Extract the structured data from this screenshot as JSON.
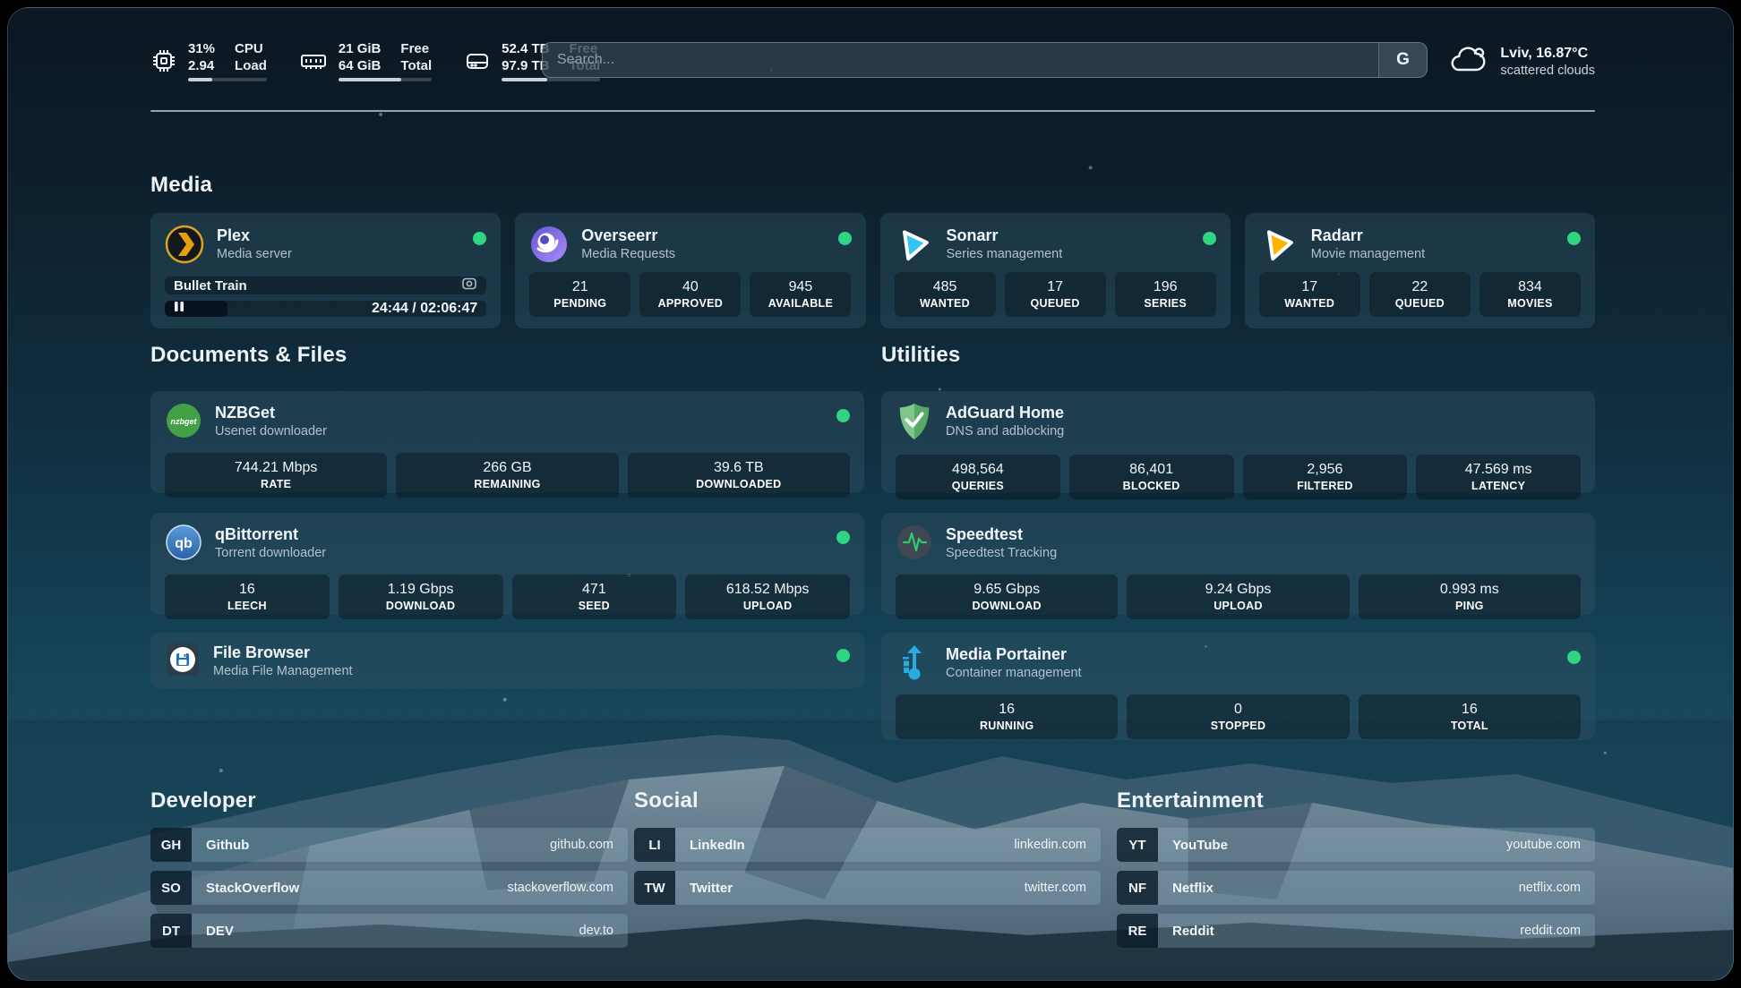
{
  "colors": {
    "status_online": "#2fd583",
    "accent_snow": "#a9bcc8",
    "card_bg": "rgba(47,82,97,0.44)"
  },
  "topbar": {
    "cpu": {
      "icon": "cpu-icon",
      "value_top": "31%",
      "value_bottom": "2.94",
      "label_top": "CPU",
      "label_bottom": "Load",
      "progress_pct": 31
    },
    "memory": {
      "icon": "ram-icon",
      "value_top": "21 GiB",
      "value_bottom": "64 GiB",
      "label_top": "Free",
      "label_bottom": "Total",
      "progress_pct": 67
    },
    "disk": {
      "icon": "disk-icon",
      "value_top": "52.4 TB",
      "value_bottom": "97.9 TB",
      "label_top": "Free",
      "label_bottom": "Total",
      "progress_pct": 46
    },
    "search_placeholder": "Search...",
    "search_button": "G",
    "weather": {
      "icon": "cloud-icon",
      "location_temp": "Lviv, 16.87°C",
      "condition": "scattered clouds"
    }
  },
  "sections": {
    "media": {
      "title": "Media",
      "plex": {
        "icon": "plex-icon",
        "name": "Plex",
        "subtitle": "Media server",
        "status": "online",
        "now_playing": "Bullet Train",
        "time_display": "24:44 / 02:06:47",
        "progress_pct": 19.5
      },
      "overseerr": {
        "icon": "overseerr-icon",
        "name": "Overseerr",
        "subtitle": "Media Requests",
        "status": "online",
        "stats": [
          {
            "value": "21",
            "label": "PENDING"
          },
          {
            "value": "40",
            "label": "APPROVED"
          },
          {
            "value": "945",
            "label": "AVAILABLE"
          }
        ]
      },
      "sonarr": {
        "icon": "sonarr-icon",
        "name": "Sonarr",
        "subtitle": "Series management",
        "status": "online",
        "stats": [
          {
            "value": "485",
            "label": "WANTED"
          },
          {
            "value": "17",
            "label": "QUEUED"
          },
          {
            "value": "196",
            "label": "SERIES"
          }
        ]
      },
      "radarr": {
        "icon": "radarr-icon",
        "name": "Radarr",
        "subtitle": "Movie management",
        "status": "online",
        "stats": [
          {
            "value": "17",
            "label": "WANTED"
          },
          {
            "value": "22",
            "label": "QUEUED"
          },
          {
            "value": "834",
            "label": "MOVIES"
          }
        ]
      }
    },
    "documents": {
      "title": "Documents & Files",
      "nzbget": {
        "icon": "nzbget-icon",
        "name": "NZBGet",
        "subtitle": "Usenet downloader",
        "status": "online",
        "stats": [
          {
            "value": "744.21 Mbps",
            "label": "RATE"
          },
          {
            "value": "266 GB",
            "label": "REMAINING"
          },
          {
            "value": "39.6 TB",
            "label": "DOWNLOADED"
          }
        ]
      },
      "qbittorrent": {
        "icon": "qbittorrent-icon",
        "name": "qBittorrent",
        "subtitle": "Torrent downloader",
        "status": "online",
        "stats": [
          {
            "value": "16",
            "label": "LEECH"
          },
          {
            "value": "1.19 Gbps",
            "label": "DOWNLOAD"
          },
          {
            "value": "471",
            "label": "SEED"
          },
          {
            "value": "618.52 Mbps",
            "label": "UPLOAD"
          }
        ]
      },
      "filebrowser": {
        "icon": "filebrowser-icon",
        "name": "File Browser",
        "subtitle": "Media File Management",
        "status": "online"
      }
    },
    "utilities": {
      "title": "Utilities",
      "adguard": {
        "icon": "adguard-icon",
        "name": "AdGuard Home",
        "subtitle": "DNS and adblocking",
        "stats": [
          {
            "value": "498,564",
            "label": "QUERIES"
          },
          {
            "value": "86,401",
            "label": "BLOCKED"
          },
          {
            "value": "2,956",
            "label": "FILTERED"
          },
          {
            "value": "47.569 ms",
            "label": "LATENCY"
          }
        ]
      },
      "speedtest": {
        "icon": "speedtest-icon",
        "name": "Speedtest",
        "subtitle": "Speedtest Tracking",
        "stats": [
          {
            "value": "9.65 Gbps",
            "label": "DOWNLOAD"
          },
          {
            "value": "9.24 Gbps",
            "label": "UPLOAD"
          },
          {
            "value": "0.993 ms",
            "label": "PING"
          }
        ]
      },
      "portainer": {
        "icon": "portainer-icon",
        "name": "Media Portainer",
        "subtitle": "Container management",
        "status": "online",
        "stats": [
          {
            "value": "16",
            "label": "RUNNING"
          },
          {
            "value": "0",
            "label": "STOPPED"
          },
          {
            "value": "16",
            "label": "TOTAL"
          }
        ]
      }
    },
    "developer": {
      "title": "Developer",
      "links": [
        {
          "abbr": "GH",
          "name": "Github",
          "url": "github.com"
        },
        {
          "abbr": "SO",
          "name": "StackOverflow",
          "url": "stackoverflow.com"
        },
        {
          "abbr": "DT",
          "name": "DEV",
          "url": "dev.to"
        }
      ]
    },
    "social": {
      "title": "Social",
      "links": [
        {
          "abbr": "LI",
          "name": "LinkedIn",
          "url": "linkedin.com"
        },
        {
          "abbr": "TW",
          "name": "Twitter",
          "url": "twitter.com"
        }
      ]
    },
    "entertainment": {
      "title": "Entertainment",
      "links": [
        {
          "abbr": "YT",
          "name": "YouTube",
          "url": "youtube.com"
        },
        {
          "abbr": "NF",
          "name": "Netflix",
          "url": "netflix.com"
        },
        {
          "abbr": "RE",
          "name": "Reddit",
          "url": "reddit.com"
        }
      ]
    }
  }
}
